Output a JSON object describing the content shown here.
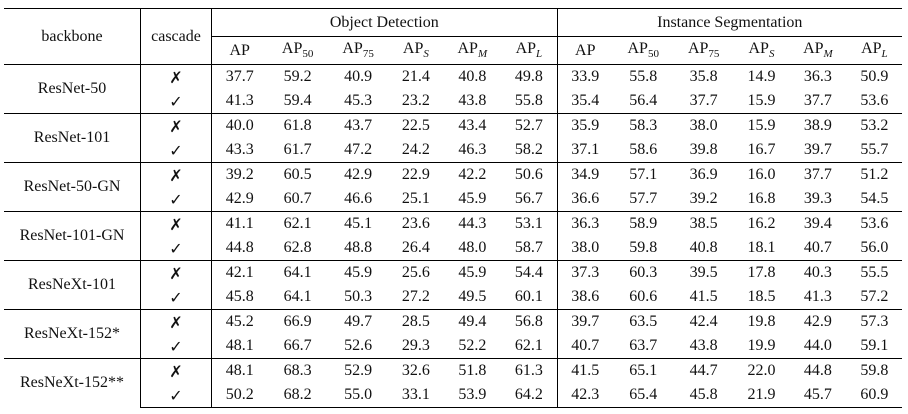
{
  "header": {
    "backbone": "backbone",
    "cascade": "cascade",
    "group1": "Object Detection",
    "group2": "Instance Segmentation",
    "metrics": [
      {
        "base": "AP",
        "sub": ""
      },
      {
        "base": "AP",
        "sub": "50"
      },
      {
        "base": "AP",
        "sub": "75"
      },
      {
        "base": "AP",
        "sub": "S"
      },
      {
        "base": "AP",
        "sub": "M"
      },
      {
        "base": "AP",
        "sub": "L"
      }
    ]
  },
  "marks": {
    "no": "✗",
    "yes": "✓"
  },
  "rows": [
    {
      "backbone": "ResNet-50",
      "no": [
        "37.7",
        "59.2",
        "40.9",
        "21.4",
        "40.8",
        "49.8",
        "33.9",
        "55.8",
        "35.8",
        "14.9",
        "36.3",
        "50.9"
      ],
      "yes": [
        "41.3",
        "59.4",
        "45.3",
        "23.2",
        "43.8",
        "55.8",
        "35.4",
        "56.4",
        "37.7",
        "15.9",
        "37.7",
        "53.6"
      ]
    },
    {
      "backbone": "ResNet-101",
      "no": [
        "40.0",
        "61.8",
        "43.7",
        "22.5",
        "43.4",
        "52.7",
        "35.9",
        "58.3",
        "38.0",
        "15.9",
        "38.9",
        "53.2"
      ],
      "yes": [
        "43.3",
        "61.7",
        "47.2",
        "24.2",
        "46.3",
        "58.2",
        "37.1",
        "58.6",
        "39.8",
        "16.7",
        "39.7",
        "55.7"
      ]
    },
    {
      "backbone": "ResNet-50-GN",
      "no": [
        "39.2",
        "60.5",
        "42.9",
        "22.9",
        "42.2",
        "50.6",
        "34.9",
        "57.1",
        "36.9",
        "16.0",
        "37.7",
        "51.2"
      ],
      "yes": [
        "42.9",
        "60.7",
        "46.6",
        "25.1",
        "45.9",
        "56.7",
        "36.6",
        "57.7",
        "39.2",
        "16.8",
        "39.3",
        "54.5"
      ]
    },
    {
      "backbone": "ResNet-101-GN",
      "no": [
        "41.1",
        "62.1",
        "45.1",
        "23.6",
        "44.3",
        "53.1",
        "36.3",
        "58.9",
        "38.5",
        "16.2",
        "39.4",
        "53.6"
      ],
      "yes": [
        "44.8",
        "62.8",
        "48.8",
        "26.4",
        "48.0",
        "58.7",
        "38.0",
        "59.8",
        "40.8",
        "18.1",
        "40.7",
        "56.0"
      ]
    },
    {
      "backbone": "ResNeXt-101",
      "no": [
        "42.1",
        "64.1",
        "45.9",
        "25.6",
        "45.9",
        "54.4",
        "37.3",
        "60.3",
        "39.5",
        "17.8",
        "40.3",
        "55.5"
      ],
      "yes": [
        "45.8",
        "64.1",
        "50.3",
        "27.2",
        "49.5",
        "60.1",
        "38.6",
        "60.6",
        "41.5",
        "18.5",
        "41.3",
        "57.2"
      ]
    },
    {
      "backbone": "ResNeXt-152*",
      "no": [
        "45.2",
        "66.9",
        "49.7",
        "28.5",
        "49.4",
        "56.8",
        "39.7",
        "63.5",
        "42.4",
        "19.8",
        "42.9",
        "57.3"
      ],
      "yes": [
        "48.1",
        "66.7",
        "52.6",
        "29.3",
        "52.2",
        "62.1",
        "40.7",
        "63.7",
        "43.8",
        "19.9",
        "44.0",
        "59.1"
      ]
    },
    {
      "backbone": "ResNeXt-152**",
      "no": [
        "48.1",
        "68.3",
        "52.9",
        "32.6",
        "51.8",
        "61.3",
        "41.5",
        "65.1",
        "44.7",
        "22.0",
        "44.8",
        "59.8"
      ],
      "yes": [
        "50.2",
        "68.2",
        "55.0",
        "33.1",
        "53.9",
        "64.2",
        "42.3",
        "65.4",
        "45.8",
        "21.9",
        "45.7",
        "60.9"
      ]
    }
  ]
}
